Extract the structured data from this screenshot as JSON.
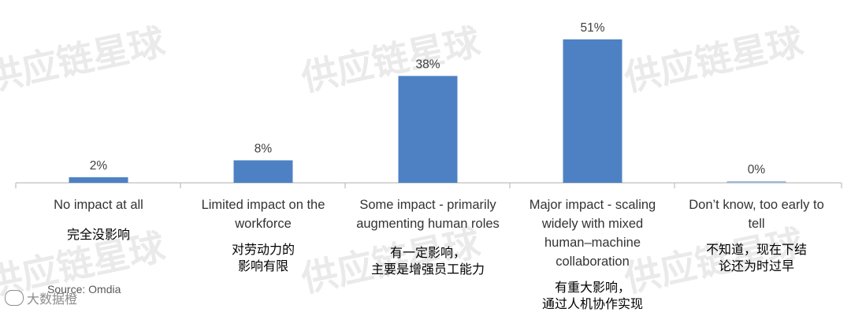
{
  "watermark": "供应链星球",
  "chart_data": {
    "type": "bar",
    "categories": [
      "No impact at all",
      "Limited impact on the\nworkforce",
      "Some impact - primarily\naugmenting human roles",
      "Major impact - scaling\nwidely with mixed\nhuman–machine\ncollaboration",
      "Don’t know, too early to\ntell"
    ],
    "categories_zh": [
      "完全没影响",
      "对劳动力的\n影响有限",
      "有一定影响，\n主要是增强员工能力",
      "有重大影响，\n通过人机协作实现",
      "不知道，现在下结\n论还为时过早"
    ],
    "values": [
      2,
      8,
      38,
      51,
      0
    ],
    "data_labels": [
      "2%",
      "8%",
      "38%",
      "51%",
      "0%"
    ],
    "ylim": [
      0,
      55
    ],
    "bar_color": "#4e81c4",
    "grid": false
  },
  "source": "Source: Omdia",
  "logo_text": "大数据橙"
}
